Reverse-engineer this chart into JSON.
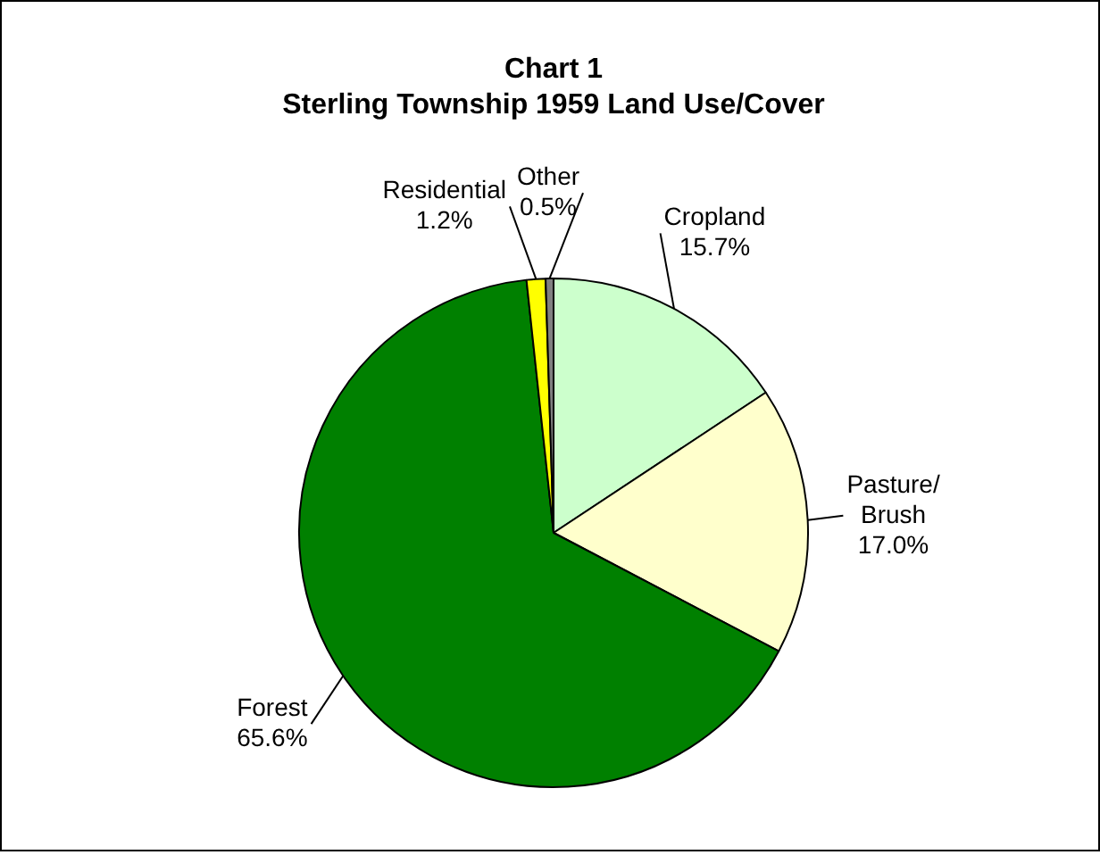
{
  "chart_data": {
    "type": "pie",
    "title": "Chart 1",
    "subtitle": "Sterling Township 1959 Land Use/Cover",
    "categories": [
      "Cropland",
      "Pasture/Brush",
      "Forest",
      "Residential",
      "Other"
    ],
    "values": [
      15.7,
      17.0,
      65.6,
      1.2,
      0.5
    ],
    "colors": [
      "#ccffcc",
      "#ffffcc",
      "#008000",
      "#ffff00",
      "#808080"
    ],
    "value_labels": [
      "15.7%",
      "17.0%",
      "65.6%",
      "1.2%",
      "0.5%"
    ],
    "legend": false
  }
}
